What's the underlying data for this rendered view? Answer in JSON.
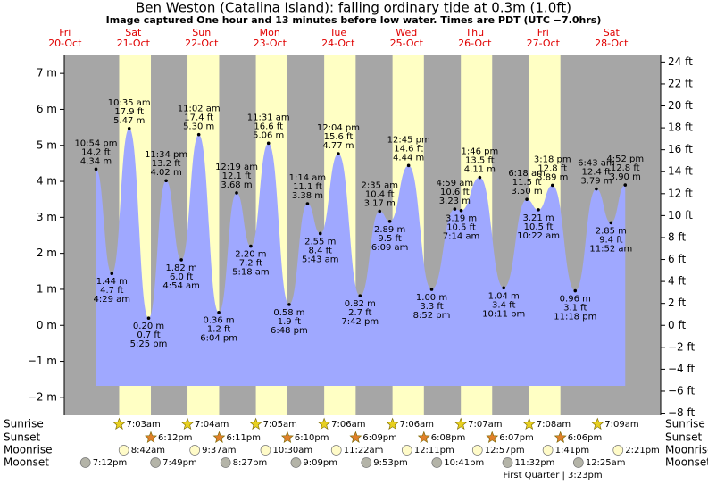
{
  "chart_data": {
    "type": "tide",
    "title": "Ben Weston (Catalina Island): falling  ordinary tide at 0.3m (1.0ft)",
    "subtitle": "Image captured One hour and 13 minutes before low water. Times are PDT (UTC −7.0hrs)",
    "ylim": [
      -2.5,
      7.5
    ],
    "yticks": [
      {
        "value": -2,
        "label": "−2 m"
      },
      {
        "value": -1,
        "label": "−1 m"
      },
      {
        "value": 0,
        "label": "0 m"
      },
      {
        "value": 1,
        "label": "1 m"
      },
      {
        "value": 2,
        "label": "2 m"
      },
      {
        "value": 3,
        "label": "3 m"
      },
      {
        "value": 4,
        "label": "4 m"
      },
      {
        "value": 5,
        "label": "5 m"
      },
      {
        "value": 6,
        "label": "6 m"
      },
      {
        "value": 7,
        "label": "7 m"
      }
    ],
    "y2lim": [
      -8.2,
      24.6
    ],
    "y2ticks": [
      {
        "value": -8,
        "label": "−8 ft"
      },
      {
        "value": -6,
        "label": "−6 ft"
      },
      {
        "value": -4,
        "label": "−4 ft"
      },
      {
        "value": -2,
        "label": "−2 ft"
      },
      {
        "value": 0,
        "label": "0 ft"
      },
      {
        "value": 2,
        "label": "2 ft"
      },
      {
        "value": 4,
        "label": "4 ft"
      },
      {
        "value": 6,
        "label": "6 ft"
      },
      {
        "value": 8,
        "label": "8 ft"
      },
      {
        "value": 10,
        "label": "10 ft"
      },
      {
        "value": 12,
        "label": "12 ft"
      },
      {
        "value": 14,
        "label": "14 ft"
      },
      {
        "value": 16,
        "label": "16 ft"
      },
      {
        "value": 18,
        "label": "18 ft"
      },
      {
        "value": 20,
        "label": "20 ft"
      },
      {
        "value": 22,
        "label": "22 ft"
      },
      {
        "value": 24,
        "label": "24 ft"
      }
    ],
    "row_labels": [
      "Sunrise",
      "Sunset",
      "Moonrise",
      "Moonset"
    ],
    "days": [
      {
        "name": "Fri",
        "date": "20-Oct",
        "moonset": "7:12pm",
        "tides": [
          {
            "time": "10:54 pm",
            "feet": "14.2 ft",
            "height": 4.34,
            "height_label": "4.34 m"
          }
        ]
      },
      {
        "name": "Sat",
        "date": "21-Oct",
        "sunrise": "7:03am",
        "sunset": "6:12pm",
        "moonrise": "8:42am",
        "moonset": "7:49pm",
        "tides": [
          {
            "time": "4:29 am",
            "feet": "4.7 ft",
            "height": 1.44,
            "height_label": "1.44 m"
          },
          {
            "time": "10:35 am",
            "feet": "17.9 ft",
            "height": 5.47,
            "height_label": "5.47 m"
          },
          {
            "time": "5:25 pm",
            "feet": "0.7 ft",
            "height": 0.2,
            "height_label": "0.20 m"
          },
          {
            "time": "11:34 pm",
            "feet": "13.2 ft",
            "height": 4.02,
            "height_label": "4.02 m"
          }
        ]
      },
      {
        "name": "Sun",
        "date": "22-Oct",
        "sunrise": "7:04am",
        "sunset": "6:11pm",
        "moonrise": "9:37am",
        "moonset": "8:27pm",
        "tides": [
          {
            "time": "4:54 am",
            "feet": "6.0 ft",
            "height": 1.82,
            "height_label": "1.82 m"
          },
          {
            "time": "11:02 am",
            "feet": "17.4 ft",
            "height": 5.3,
            "height_label": "5.30 m"
          },
          {
            "time": "6:04 pm",
            "feet": "1.2 ft",
            "height": 0.36,
            "height_label": "0.36 m"
          }
        ]
      },
      {
        "name": "Mon",
        "date": "23-Oct",
        "sunrise": "7:05am",
        "sunset": "6:10pm",
        "moonrise": "10:30am",
        "moonset": "9:09pm",
        "tides": [
          {
            "time": "12:19 am",
            "feet": "12.1 ft",
            "height": 3.68,
            "height_label": "3.68 m"
          },
          {
            "time": "5:18 am",
            "feet": "7.2 ft",
            "height": 2.2,
            "height_label": "2.20 m"
          },
          {
            "time": "11:31 am",
            "feet": "16.6 ft",
            "height": 5.06,
            "height_label": "5.06 m"
          },
          {
            "time": "6:48 pm",
            "feet": "1.9 ft",
            "height": 0.58,
            "height_label": "0.58 m"
          }
        ]
      },
      {
        "name": "Tue",
        "date": "24-Oct",
        "sunrise": "7:06am",
        "sunset": "6:09pm",
        "moonrise": "11:22am",
        "moonset": "9:53pm",
        "tides": [
          {
            "time": "1:14 am",
            "feet": "11.1 ft",
            "height": 3.38,
            "height_label": "3.38 m"
          },
          {
            "time": "5:43 am",
            "feet": "8.4 ft",
            "height": 2.55,
            "height_label": "2.55 m"
          },
          {
            "time": "12:04 pm",
            "feet": "15.6 ft",
            "height": 4.77,
            "height_label": "4.77 m"
          },
          {
            "time": "7:42 pm",
            "feet": "2.7 ft",
            "height": 0.82,
            "height_label": "0.82 m"
          }
        ]
      },
      {
        "name": "Wed",
        "date": "25-Oct",
        "sunrise": "7:06am",
        "sunset": "6:08pm",
        "moonrise": "12:11pm",
        "moonset": "10:41pm",
        "tides": [
          {
            "time": "2:35 am",
            "feet": "10.4 ft",
            "height": 3.17,
            "height_label": "3.17 m"
          },
          {
            "time": "6:09 am",
            "feet": "9.5 ft",
            "height": 2.89,
            "height_label": "2.89 m"
          },
          {
            "time": "12:45 pm",
            "feet": "14.6 ft",
            "height": 4.44,
            "height_label": "4.44 m"
          },
          {
            "time": "8:52 pm",
            "feet": "3.3 ft",
            "height": 1.0,
            "height_label": "1.00 m"
          }
        ]
      },
      {
        "name": "Thu",
        "date": "26-Oct",
        "sunrise": "7:07am",
        "sunset": "6:07pm",
        "moonrise": "12:57pm",
        "moonset": "11:32pm",
        "tides": [
          {
            "time": "4:59 am",
            "feet": "10.6 ft",
            "height": 3.23,
            "height_label": "3.23 m"
          },
          {
            "time": "7:14 am",
            "feet": "10.5 ft",
            "height": 3.19,
            "height_label": "3.19 m"
          },
          {
            "time": "1:46 pm",
            "feet": "13.5 ft",
            "height": 4.11,
            "height_label": "4.11 m"
          },
          {
            "time": "10:11 pm",
            "feet": "3.4 ft",
            "height": 1.04,
            "height_label": "1.04 m"
          }
        ]
      },
      {
        "name": "Fri",
        "date": "27-Oct",
        "sunrise": "7:08am",
        "sunset": "6:06pm",
        "moonrise": "1:41pm",
        "phase": "First Quarter | 3:23pm",
        "tides": [
          {
            "time": "6:18 am",
            "feet": "11.5 ft",
            "height": 3.5,
            "height_label": "3.50 m"
          },
          {
            "time": "10:22 am",
            "feet": "10.5 ft",
            "height": 3.21,
            "height_label": "3.21 m"
          },
          {
            "time": "3:18 pm",
            "feet": "12.8 ft",
            "height": 3.89,
            "height_label": "3.89 m"
          },
          {
            "time": "11:18 pm",
            "feet": "3.1 ft",
            "height": 0.96,
            "height_label": "0.96 m"
          }
        ]
      },
      {
        "name": "Sat",
        "date": "28-Oct",
        "sunrise": "7:09am",
        "moonrise": "2:21pm",
        "moonset": "12:25am",
        "tides": [
          {
            "time": "6:43 am",
            "feet": "12.4 ft",
            "height": 3.79,
            "height_label": "3.79 m"
          },
          {
            "time": "11:52 am",
            "feet": "9.4 ft",
            "height": 2.85,
            "height_label": "2.85 m"
          },
          {
            "time": "4:52 pm",
            "feet": "12.8 ft",
            "height": 3.9,
            "height_label": "3.90 m"
          }
        ]
      }
    ]
  }
}
